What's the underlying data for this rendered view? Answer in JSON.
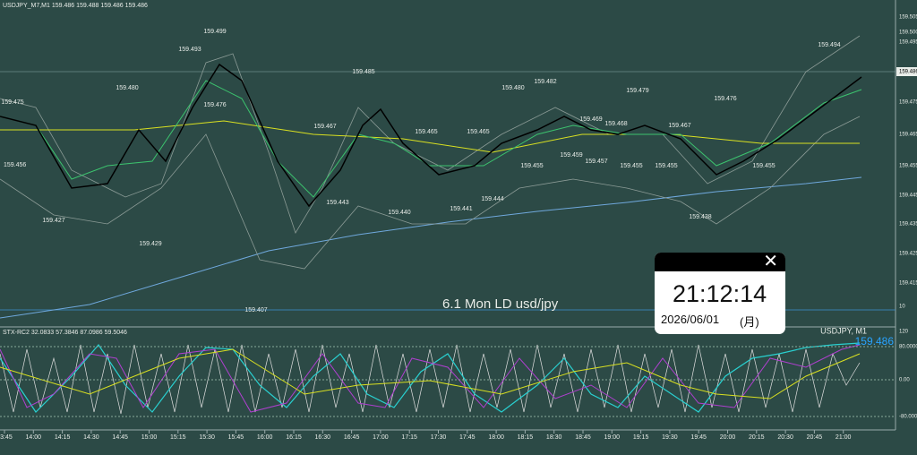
{
  "header": {
    "title": "USDJPY_M7,M1  159.486 159.488 159.486 159.486"
  },
  "main_chart": {
    "price_labels": [
      "159.475",
      "159.480",
      "159.493",
      "159.499",
      "159.476",
      "159.485",
      "159.467",
      "159.465",
      "159.480",
      "159.482",
      "159.465",
      "159.455",
      "159.469",
      "159.468",
      "159.479",
      "159.467",
      "159.459",
      "159.457",
      "159.455",
      "159.455",
      "159.476",
      "159.455",
      "159.494",
      "159.427",
      "159.429",
      "159.407",
      "159.443",
      "159.440",
      "159.441",
      "159.444",
      "159.438",
      "159.456"
    ],
    "price_axis": [
      "159.505",
      "159.500",
      "159.495",
      "159.486",
      "159.475",
      "159.465",
      "159.455",
      "159.445",
      "159.435",
      "159.425",
      "159.415",
      "10"
    ],
    "caption": "6.1 Mon LD usd/jpy"
  },
  "indicator": {
    "label": "STX-RC2 32.0833 57.3846 87.0986 59.5046",
    "symbol": "USDJPY, M1",
    "price": "159.486",
    "levels": [
      "120",
      "80.0000",
      "0.00",
      "-80.0000"
    ]
  },
  "time_axis": [
    "13:45",
    "14:00",
    "14:15",
    "14:30",
    "14:45",
    "15:00",
    "15:15",
    "15:30",
    "15:45",
    "16:00",
    "16:15",
    "16:30",
    "16:45",
    "17:00",
    "17:15",
    "17:30",
    "17:45",
    "18:00",
    "18:15",
    "18:30",
    "18:45",
    "19:00",
    "19:15",
    "19:30",
    "19:45",
    "20:00",
    "20:15",
    "20:30",
    "20:45",
    "21:00"
  ],
  "clock": {
    "time": "21:12:14",
    "date": "2026/06/01",
    "day": "(月)"
  }
}
